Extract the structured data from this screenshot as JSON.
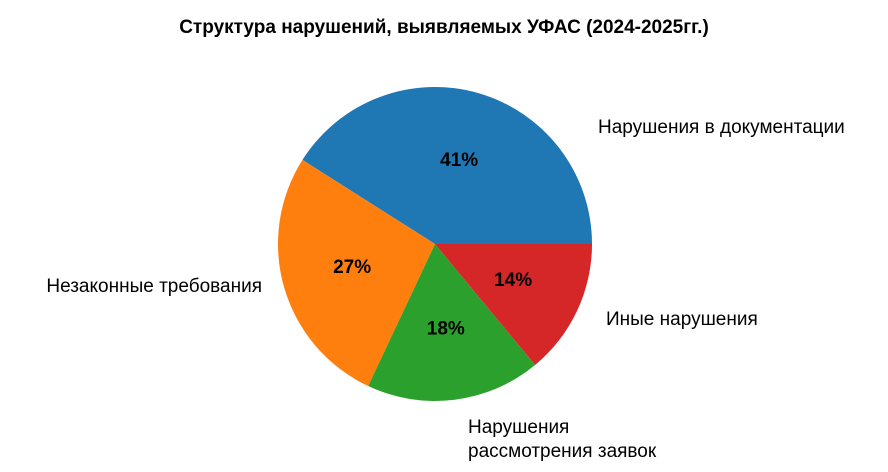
{
  "chart_data": {
    "type": "pie",
    "title": "Структура нарушений, выявляемых УФАС (2024-2025гг.)",
    "categories": [
      "Нарушения в документации",
      "Незаконные требования",
      "Нарушения\nрассмотрения заявок",
      "Иные нарушения"
    ],
    "values": [
      41,
      27,
      18,
      14
    ],
    "value_labels": [
      "41%",
      "27%",
      "18%",
      "14%"
    ],
    "colors": [
      "#1f77b4",
      "#ff7f0e",
      "#2ca02c",
      "#d62728"
    ]
  }
}
